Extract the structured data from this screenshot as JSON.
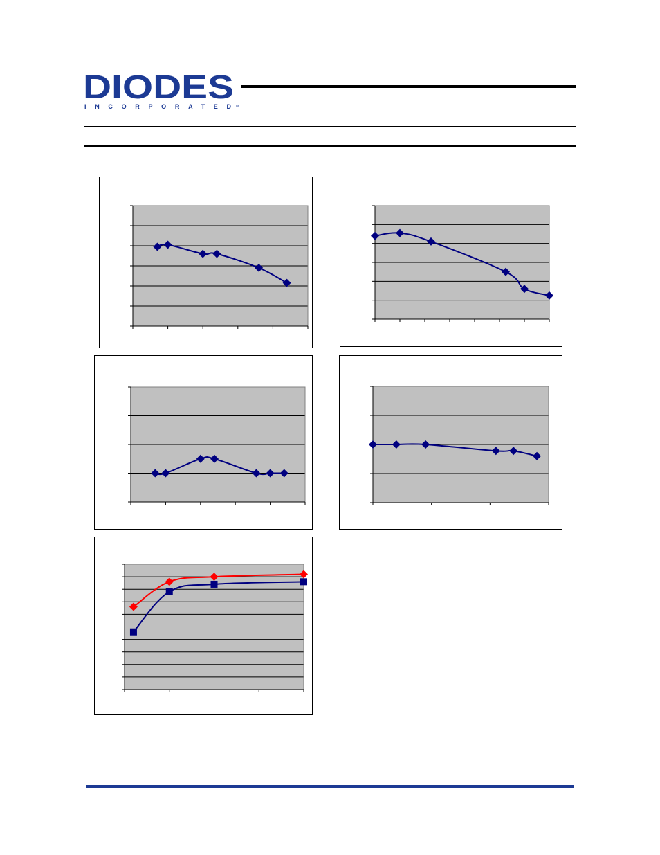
{
  "header": {
    "logo_text": "DIODES",
    "logo_subtext": "INCORPORATED",
    "trademark": "TM",
    "brand_color": "#1c3a94"
  },
  "colors": {
    "plot_bg": "#c0c0c0",
    "series_blue": "#000080",
    "series_red": "#ff0000",
    "footer_rule": "#1c3a94"
  },
  "chart_data": [
    {
      "type": "line",
      "grid": true,
      "ylim": [
        0,
        6
      ],
      "xlim": [
        0,
        5
      ],
      "series": [
        {
          "marker": "diamond",
          "color": "#000080",
          "x": [
            0.7,
            1.0,
            2.0,
            2.4,
            3.6,
            4.4
          ],
          "y": [
            3.95,
            4.05,
            3.6,
            3.6,
            2.9,
            2.15
          ]
        }
      ]
    },
    {
      "type": "line",
      "grid": true,
      "ylim": [
        0,
        6
      ],
      "xlim": [
        0,
        7
      ],
      "series": [
        {
          "marker": "diamond",
          "color": "#000080",
          "x": [
            0.0,
            1.0,
            2.25,
            5.25,
            6.0,
            7.0
          ],
          "y": [
            4.4,
            4.55,
            4.1,
            2.5,
            1.6,
            1.25
          ]
        }
      ]
    },
    {
      "type": "line",
      "grid": true,
      "ylim": [
        0,
        4
      ],
      "xlim": [
        0,
        5
      ],
      "series": [
        {
          "marker": "diamond",
          "color": "#000080",
          "x": [
            0.7,
            1.0,
            2.0,
            2.4,
            3.6,
            4.0,
            4.4
          ],
          "y": [
            1.0,
            1.0,
            1.5,
            1.5,
            1.0,
            1.0,
            1.0
          ]
        }
      ]
    },
    {
      "type": "line",
      "grid": true,
      "ylim": [
        0,
        4
      ],
      "xlim": [
        0,
        3
      ],
      "series": [
        {
          "marker": "diamond",
          "color": "#000080",
          "x": [
            0.0,
            0.4,
            0.9,
            2.1,
            2.4,
            2.8
          ],
          "y": [
            2.0,
            2.0,
            2.0,
            1.78,
            1.78,
            1.6
          ]
        }
      ]
    },
    {
      "type": "line",
      "grid": true,
      "ylim": [
        0,
        10
      ],
      "xlim": [
        0,
        4
      ],
      "series": [
        {
          "marker": "diamond",
          "color": "#ff0000",
          "x": [
            0.2,
            1.0,
            2.0,
            4.0
          ],
          "y": [
            6.6,
            8.6,
            9.0,
            9.2
          ]
        },
        {
          "marker": "square",
          "color": "#000080",
          "x": [
            0.2,
            1.0,
            2.0,
            4.0
          ],
          "y": [
            4.6,
            7.8,
            8.4,
            8.6
          ]
        }
      ]
    }
  ]
}
